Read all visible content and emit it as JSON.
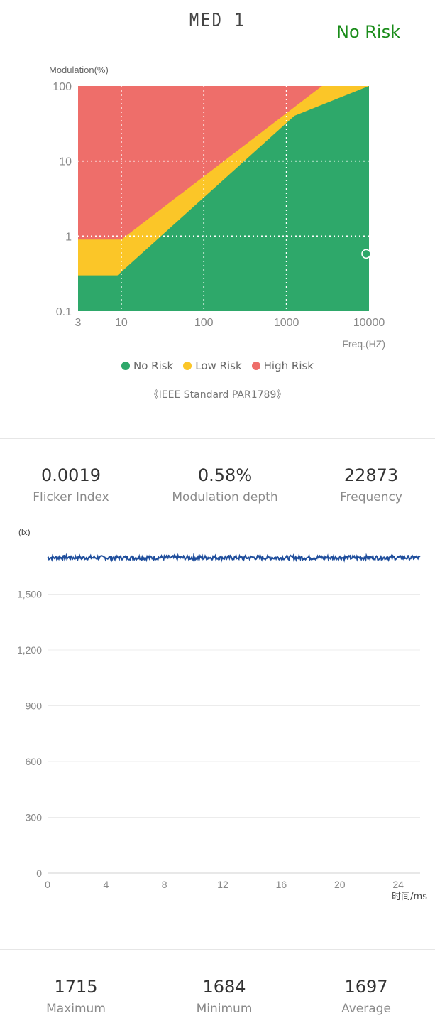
{
  "header": {
    "device_name": "MED 1",
    "risk_status": "No Risk",
    "risk_status_color": "#1a8c1a"
  },
  "risk_chart": {
    "chart_data": {
      "type": "area",
      "xlabel": "Freq.(HZ)",
      "ylabel": "Modulation(%)",
      "x_scale": "log",
      "y_scale": "log",
      "xlim": [
        3,
        10000
      ],
      "ylim": [
        0.1,
        100
      ],
      "x_ticks": [
        "3",
        "10",
        "100",
        "1000",
        "10000"
      ],
      "y_ticks": [
        "100",
        "10",
        "1",
        "0.1"
      ],
      "grid": "dotted",
      "regions": [
        {
          "name": "No Risk",
          "color": "#2ea86a",
          "boundary": [
            [
              3,
              0.3
            ],
            [
              9,
              0.3
            ],
            [
              1250,
              40
            ],
            [
              10000,
              100
            ]
          ]
        },
        {
          "name": "Low Risk",
          "color": "#fbc628",
          "boundary": [
            [
              3,
              0.9
            ],
            [
              10,
              0.9
            ],
            [
              2700,
              100
            ]
          ]
        },
        {
          "name": "High Risk",
          "color": "#ee6e6a"
        }
      ],
      "measurement": {
        "x": 10000,
        "y": 0.58
      },
      "legend_position": "bottom"
    },
    "legend": [
      {
        "label": "No Risk",
        "color": "#2ea86a"
      },
      {
        "label": "Low Risk",
        "color": "#fbc628"
      },
      {
        "label": "High Risk",
        "color": "#ee6e6a"
      }
    ],
    "standard_note": "《IEEE Standard PAR1789》"
  },
  "metrics": [
    {
      "value": "0.0019",
      "label": "Flicker Index"
    },
    {
      "value": "0.58%",
      "label": "Modulation depth"
    },
    {
      "value": "22873",
      "label": "Frequency"
    }
  ],
  "waveform": {
    "chart_data": {
      "type": "line",
      "ylabel": "(lx)",
      "xlabel": "时间/ms",
      "xlim": [
        0,
        25.5
      ],
      "ylim": [
        0,
        1800
      ],
      "x_ticks": [
        "0",
        "4",
        "8",
        "12",
        "16",
        "20",
        "24"
      ],
      "y_ticks": [
        "1,500",
        "1,200",
        "900",
        "600",
        "300",
        "0"
      ],
      "series": [
        {
          "color": "#1f4e9c",
          "min": 1684,
          "max": 1715,
          "average": 1697
        }
      ]
    }
  },
  "summary": [
    {
      "value": "1715",
      "label": "Maximum"
    },
    {
      "value": "1684",
      "label": "Minimum"
    },
    {
      "value": "1697",
      "label": "Average"
    }
  ]
}
